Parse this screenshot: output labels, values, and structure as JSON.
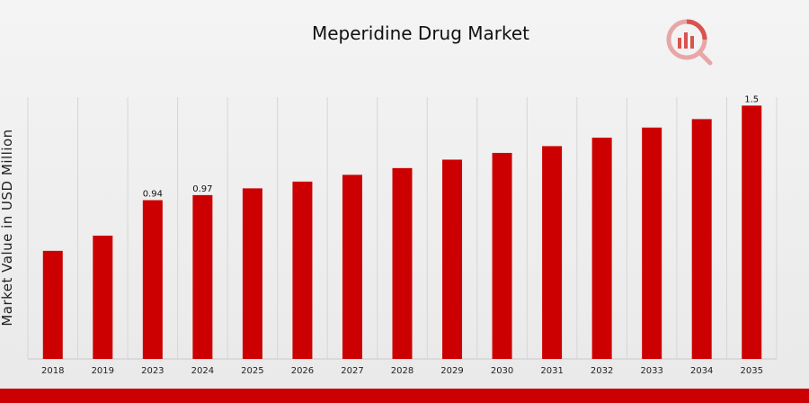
{
  "colors": {
    "bar": "#cc0000",
    "footer": "#cc0000",
    "grid": "#d6d6d6",
    "logo": "#d9534f"
  },
  "icons": {
    "logo": "market-research-logo-icon"
  },
  "chart_data": {
    "type": "bar",
    "title": "Meperidine Drug Market",
    "xlabel": "",
    "ylabel": "Market Value in USD Million",
    "categories": [
      "2018",
      "2019",
      "2023",
      "2024",
      "2025",
      "2026",
      "2027",
      "2028",
      "2029",
      "2030",
      "2031",
      "2032",
      "2033",
      "2034",
      "2035"
    ],
    "values": [
      0.64,
      0.73,
      0.94,
      0.97,
      1.01,
      1.05,
      1.09,
      1.13,
      1.18,
      1.22,
      1.26,
      1.31,
      1.37,
      1.42,
      1.5
    ],
    "data_labels": [
      null,
      null,
      "0.94",
      "0.97",
      null,
      null,
      null,
      null,
      null,
      null,
      null,
      null,
      null,
      null,
      "1.5"
    ],
    "ylim": [
      0,
      1.55
    ],
    "grid": "vertical",
    "legend": "none"
  }
}
